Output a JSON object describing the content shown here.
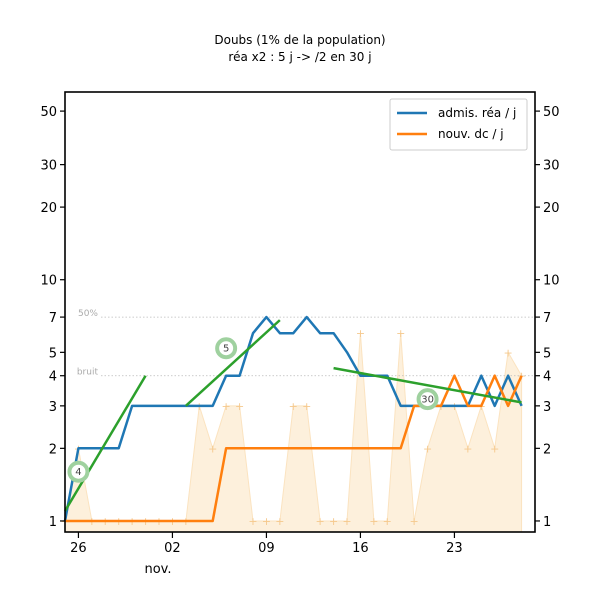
{
  "chart_data": {
    "type": "line",
    "title": "Doubs (1% de la population)",
    "subtitle": "réa x2 : 5 j -> /2 en 30 j",
    "y_scale": "log",
    "ylim": [
      0.9,
      60
    ],
    "xlim": [
      "2020-10-25",
      "2020-11-29"
    ],
    "y_ticks": [
      1,
      2,
      3,
      4,
      5,
      7,
      10,
      20,
      30,
      50
    ],
    "x_ticks": [
      {
        "date": "2020-10-26",
        "label": "26"
      },
      {
        "date": "2020-11-02",
        "label": "02"
      },
      {
        "date": "2020-11-09",
        "label": "09"
      },
      {
        "date": "2020-11-16",
        "label": "16"
      },
      {
        "date": "2020-11-23",
        "label": "23"
      }
    ],
    "x_month_label": "nov.",
    "grid": false,
    "legend_position": "top-right",
    "reference_lines": [
      {
        "value": 7,
        "label": "50%"
      },
      {
        "value": 4,
        "label": "bruit"
      }
    ],
    "series": [
      {
        "name": "admis. réa / j",
        "color": "#1f77b4",
        "dates": [
          "2020-10-25",
          "2020-10-26",
          "2020-10-27",
          "2020-10-28",
          "2020-10-29",
          "2020-10-30",
          "2020-10-31",
          "2020-11-01",
          "2020-11-02",
          "2020-11-03",
          "2020-11-04",
          "2020-11-05",
          "2020-11-06",
          "2020-11-07",
          "2020-11-08",
          "2020-11-09",
          "2020-11-10",
          "2020-11-11",
          "2020-11-12",
          "2020-11-13",
          "2020-11-14",
          "2020-11-15",
          "2020-11-16",
          "2020-11-17",
          "2020-11-18",
          "2020-11-19",
          "2020-11-20",
          "2020-11-21",
          "2020-11-22",
          "2020-11-23",
          "2020-11-24",
          "2020-11-25",
          "2020-11-26",
          "2020-11-27",
          "2020-11-28"
        ],
        "values": [
          1,
          2,
          2,
          2,
          2,
          3,
          3,
          3,
          3,
          3,
          3,
          3,
          4,
          4,
          6,
          7,
          6,
          6,
          7,
          6,
          6,
          5,
          4,
          4,
          4,
          3,
          3,
          3,
          3,
          3,
          3,
          4,
          3,
          4,
          3
        ]
      },
      {
        "name": "nouv. dc / j",
        "color": "#ff7f0e",
        "dates": [
          "2020-10-25",
          "2020-10-26",
          "2020-10-27",
          "2020-10-28",
          "2020-10-29",
          "2020-10-30",
          "2020-10-31",
          "2020-11-01",
          "2020-11-02",
          "2020-11-03",
          "2020-11-04",
          "2020-11-05",
          "2020-11-06",
          "2020-11-07",
          "2020-11-08",
          "2020-11-09",
          "2020-11-10",
          "2020-11-11",
          "2020-11-12",
          "2020-11-13",
          "2020-11-14",
          "2020-11-15",
          "2020-11-16",
          "2020-11-17",
          "2020-11-18",
          "2020-11-19",
          "2020-11-20",
          "2020-11-21",
          "2020-11-22",
          "2020-11-23",
          "2020-11-24",
          "2020-11-25",
          "2020-11-26",
          "2020-11-27",
          "2020-11-28"
        ],
        "values": [
          1,
          1,
          1,
          1,
          1,
          1,
          1,
          1,
          1,
          1,
          1,
          1,
          2,
          2,
          2,
          2,
          2,
          2,
          2,
          2,
          2,
          2,
          2,
          2,
          2,
          2,
          3,
          3,
          3,
          4,
          3,
          3,
          4,
          3,
          4
        ]
      }
    ],
    "trend_lines": [
      {
        "color": "#2ca02c",
        "start": {
          "date": "2020-10-25",
          "value": 1.1
        },
        "end": {
          "date": "2020-10-31",
          "value": 4.0
        },
        "marker_label": "4",
        "marker_date": "2020-10-26",
        "marker_value": 1.6
      },
      {
        "color": "#2ca02c",
        "start": {
          "date": "2020-11-03",
          "value": 3.0
        },
        "end": {
          "date": "2020-11-10",
          "value": 6.8
        },
        "marker_label": "5",
        "marker_date": "2020-11-06",
        "marker_value": 5.2
      },
      {
        "color": "#2ca02c",
        "start": {
          "date": "2020-11-14",
          "value": 4.3
        },
        "end": {
          "date": "2020-11-28",
          "value": 3.1
        },
        "marker_label": "30",
        "marker_date": "2020-11-21",
        "marker_value": 3.2
      }
    ],
    "background_daily": {
      "color": "#fdf0dc",
      "dates": [
        "2020-10-25",
        "2020-10-26",
        "2020-10-27",
        "2020-10-28",
        "2020-10-29",
        "2020-10-30",
        "2020-10-31",
        "2020-11-01",
        "2020-11-02",
        "2020-11-03",
        "2020-11-04",
        "2020-11-05",
        "2020-11-06",
        "2020-11-07",
        "2020-11-08",
        "2020-11-09",
        "2020-11-10",
        "2020-11-11",
        "2020-11-12",
        "2020-11-13",
        "2020-11-14",
        "2020-11-15",
        "2020-11-16",
        "2020-11-17",
        "2020-11-18",
        "2020-11-19",
        "2020-11-20",
        "2020-11-21",
        "2020-11-22",
        "2020-11-23",
        "2020-11-24",
        "2020-11-25",
        "2020-11-26",
        "2020-11-27",
        "2020-11-28"
      ],
      "values": [
        1,
        2,
        1,
        1,
        1,
        1,
        1,
        1,
        1,
        1,
        3,
        2,
        3,
        3,
        1,
        1,
        1,
        3,
        3,
        1,
        1,
        1,
        6,
        1,
        1,
        6,
        1,
        2,
        3,
        3,
        2,
        3,
        2,
        5,
        4
      ]
    }
  }
}
